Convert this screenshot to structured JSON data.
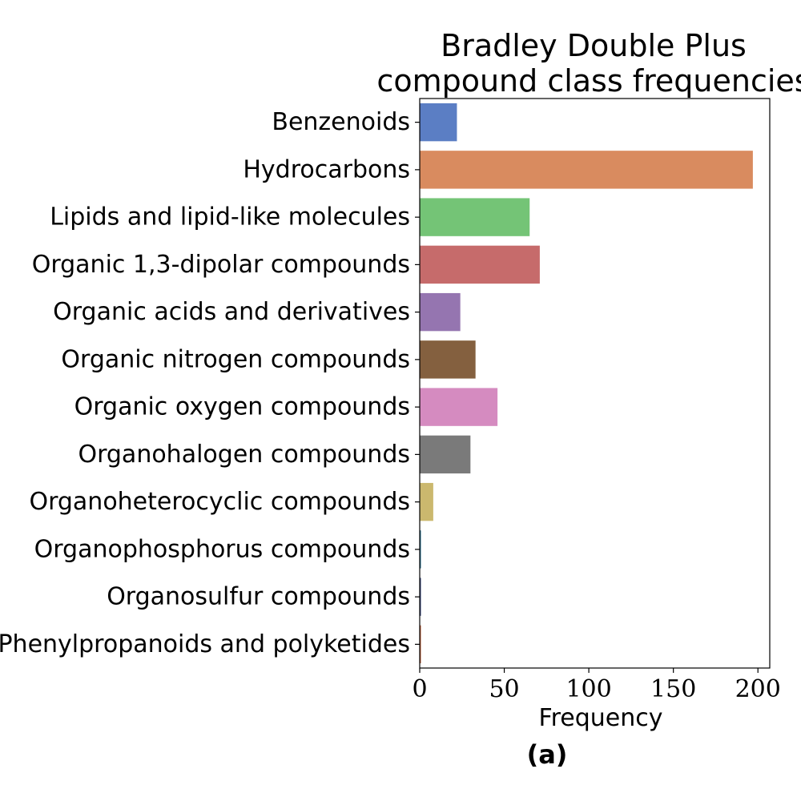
{
  "chart_data": {
    "type": "bar",
    "orientation": "horizontal",
    "title": [
      "Bradley Double Plus",
      "compound class frequencies"
    ],
    "xlabel": "Frequency",
    "ylabel": "",
    "panel_label": "(a)",
    "xlim": [
      0,
      207
    ],
    "xticks": [
      0,
      50,
      100,
      150,
      200
    ],
    "xtick_labels": [
      "0",
      "50",
      "100",
      "150",
      "200"
    ],
    "grid": false,
    "legend": "none",
    "categories": [
      "Benzenoids",
      "Hydrocarbons",
      "Lipids and lipid-like molecules",
      "Organic 1,3-dipolar compounds",
      "Organic acids and derivatives",
      "Organic nitrogen compounds",
      "Organic oxygen compounds",
      "Organohalogen compounds",
      "Organoheterocyclic compounds",
      "Organophosphorus compounds",
      "Organosulfur compounds",
      "Phenylpropanoids and polyketides"
    ],
    "values": [
      22,
      197,
      65,
      71,
      24,
      33,
      46,
      30,
      8,
      0,
      0,
      0
    ],
    "colors": [
      "#5b7ec4",
      "#d98b5f",
      "#74c476",
      "#c66b6b",
      "#9575b0",
      "#84603f",
      "#d58bc0",
      "#7a7a7a",
      "#cbb86e",
      "#1f6a8a",
      "#2c3e73",
      "#b5562f"
    ]
  }
}
